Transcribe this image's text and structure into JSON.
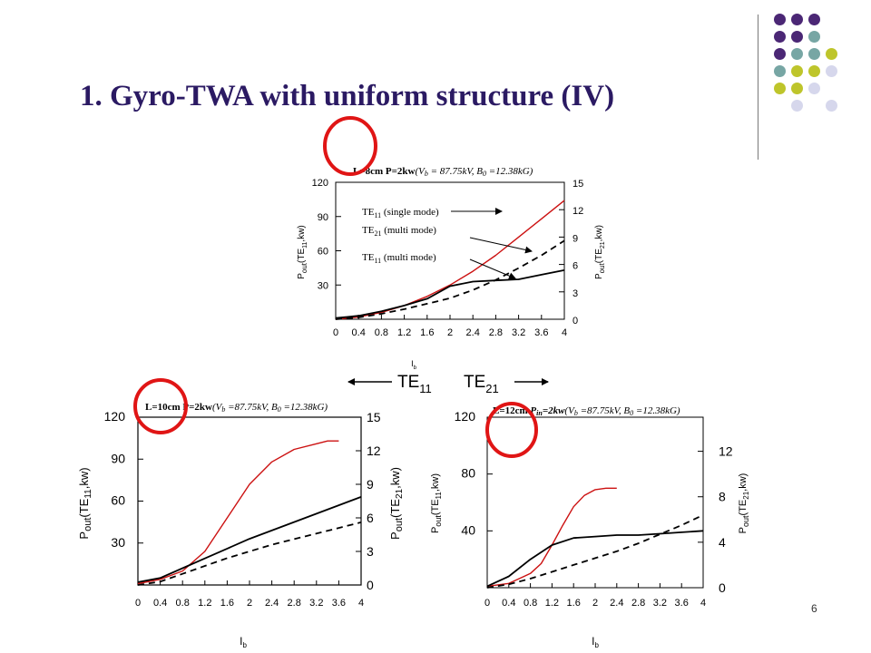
{
  "slide": {
    "title": "1. Gyro-TWA with uniform structure (IV)",
    "page_number": "6",
    "decoration": {
      "dot_colors": {
        "purple": "#4b2775",
        "teal": "#77a6a4",
        "olive": "#bec52b",
        "lavender": "#d6d7ec"
      },
      "dot_grid": [
        [
          "purple",
          "purple",
          "purple",
          null
        ],
        [
          "purple",
          "purple",
          "teal",
          null
        ],
        [
          "purple",
          "teal",
          "teal",
          "olive"
        ],
        [
          "teal",
          "olive",
          "olive",
          "lavender"
        ],
        [
          "olive",
          "olive",
          "lavender",
          null
        ],
        [
          null,
          "lavender",
          null,
          "lavender"
        ]
      ]
    }
  },
  "colors": {
    "single_mode": "#cc1111",
    "multi_mode": "#000000",
    "highlight": "#e01515"
  },
  "mode_arrow": {
    "left": "TE",
    "left_sub": "11",
    "right": "TE",
    "right_sub": "21"
  },
  "chart_data": [
    {
      "type": "line",
      "title": "L=8cm P=2kw(V_b=87.75kV, B_0=12.38kG)",
      "caption": {
        "length": "L=8cm",
        "power": "P=2kw",
        "params": "(V = 87.75kV, B =12.38kG)",
        "sub_vb": "b",
        "sub_b0": "0"
      },
      "xlabel": "I",
      "xlabel_sub": "b",
      "ylabel_left": "P",
      "ylabel_left_sub": "out",
      "ylabel_left_tail": "(TE",
      "ylabel_left_mode": "11",
      "ylabel_left_end": ",kw)",
      "ylabel_right": "P",
      "ylabel_right_sub": "out",
      "ylabel_right_tail": "(TE",
      "ylabel_right_mode": "21",
      "ylabel_right_end": ",kw)",
      "xlim": [
        0,
        4
      ],
      "ylim_left": [
        0,
        120
      ],
      "ylim_right": [
        0,
        15
      ],
      "x_ticks": [
        "0",
        "0.4",
        "0.8",
        "1.2",
        "1.6",
        "2",
        "2.4",
        "2.8",
        "3.2",
        "3.6",
        "4"
      ],
      "y_ticks_left": [
        "30",
        "60",
        "90",
        "120"
      ],
      "y_ticks_right": [
        "0",
        "3",
        "6",
        "9",
        "12",
        "15"
      ],
      "annotations": [
        {
          "text": "TE",
          "sub": "11",
          "tail": " (single mode)"
        },
        {
          "text": "TE",
          "sub": "21",
          "tail": " (multi mode)"
        },
        {
          "text": "TE",
          "sub": "11",
          "tail": " (multi mode)"
        }
      ],
      "series": [
        {
          "name": "TE11 (single mode)",
          "axis": "left",
          "style": "solid",
          "color": "#cc1111",
          "x": [
            0,
            0.4,
            0.8,
            1.2,
            1.6,
            2.0,
            2.4,
            2.8,
            3.2,
            3.6,
            4.0
          ],
          "y": [
            0,
            2,
            6,
            12,
            20,
            30,
            42,
            56,
            72,
            88,
            104
          ]
        },
        {
          "name": "TE11 (multi mode)",
          "axis": "left",
          "style": "solid",
          "color": "#000000",
          "x": [
            0,
            0.4,
            0.8,
            1.2,
            1.6,
            2.0,
            2.4,
            2.8,
            3.2,
            3.6,
            4.0
          ],
          "y": [
            1,
            3,
            7,
            12,
            18,
            29,
            33,
            34,
            35,
            39,
            43
          ]
        },
        {
          "name": "TE21 (multi mode)",
          "axis": "right",
          "style": "dashed",
          "color": "#000000",
          "x": [
            0,
            0.4,
            0.8,
            1.2,
            1.6,
            2.0,
            2.4,
            2.8,
            3.2,
            3.6,
            4.0
          ],
          "y": [
            0,
            0.2,
            0.6,
            1.1,
            1.7,
            2.3,
            3.2,
            4.3,
            5.6,
            7.0,
            8.6
          ]
        }
      ]
    },
    {
      "type": "line",
      "title": "L=10cm P=2kw(V_b=87.75kV, B_0=12.38kG)",
      "caption": {
        "length": "L=10cm",
        "power": "P=2kw",
        "params": "(V =87.75kV, B =12.38kG)",
        "sub_vb": "b",
        "sub_b0": "0"
      },
      "xlabel": "I",
      "xlabel_sub": "b",
      "ylabel_left": "P",
      "ylabel_left_sub": "out",
      "ylabel_left_tail": "(TE",
      "ylabel_left_mode": "11",
      "ylabel_left_end": ",kw)",
      "ylabel_right": "P",
      "ylabel_right_sub": "out",
      "ylabel_right_tail": "(TE",
      "ylabel_right_mode": "21",
      "ylabel_right_end": ",kw)",
      "xlim": [
        0,
        4
      ],
      "ylim_left": [
        0,
        120
      ],
      "ylim_right": [
        0,
        15
      ],
      "x_ticks": [
        "0",
        "0.4",
        "0.8",
        "1.2",
        "1.6",
        "2",
        "2.4",
        "2.8",
        "3.2",
        "3.6",
        "4"
      ],
      "y_ticks_left": [
        "30",
        "60",
        "90",
        "120"
      ],
      "y_ticks_right": [
        "0",
        "3",
        "6",
        "9",
        "12",
        "15"
      ],
      "series": [
        {
          "name": "TE11 (single mode)",
          "axis": "left",
          "style": "solid",
          "color": "#cc1111",
          "x": [
            0,
            0.4,
            0.8,
            1.2,
            1.6,
            2.0,
            2.4,
            2.8,
            3.2,
            3.4,
            3.6
          ],
          "y": [
            1,
            4,
            10,
            24,
            48,
            72,
            88,
            97,
            101,
            103,
            103
          ]
        },
        {
          "name": "TE11 (multi mode)",
          "axis": "left",
          "style": "solid",
          "color": "#000000",
          "x": [
            0,
            0.4,
            0.8,
            1.2,
            1.6,
            2.0,
            2.4,
            2.8,
            3.2,
            3.6,
            4.0
          ],
          "y": [
            2,
            5,
            12,
            19,
            26,
            33,
            39,
            45,
            51,
            57,
            63
          ]
        },
        {
          "name": "TE21 (multi mode)",
          "axis": "right",
          "style": "dashed",
          "color": "#000000",
          "x": [
            0,
            0.4,
            0.8,
            1.2,
            1.6,
            2.0,
            2.4,
            2.8,
            3.2,
            3.6,
            4.0
          ],
          "y": [
            0,
            0.3,
            1.0,
            1.7,
            2.4,
            3.0,
            3.6,
            4.1,
            4.6,
            5.1,
            5.6
          ]
        }
      ]
    },
    {
      "type": "line",
      "title": "L=12cm P_in=2kw(V_b=87.75kV, B_0=12.38kG)",
      "caption": {
        "length": "L=12cm",
        "power": "P",
        "power_sub": "in",
        "power_tail": "=2kw",
        "params": "(V =87.75kV, B =12.38kG)",
        "sub_vb": "b",
        "sub_b0": "0"
      },
      "xlabel": "I",
      "xlabel_sub": "b",
      "ylabel_left": "P",
      "ylabel_left_sub": "out",
      "ylabel_left_tail": "(TE",
      "ylabel_left_mode": "11",
      "ylabel_left_end": ",kw)",
      "ylabel_right": "P",
      "ylabel_right_sub": "out",
      "ylabel_right_tail": "(TE",
      "ylabel_right_mode": "21",
      "ylabel_right_end": ",kw)",
      "xlim": [
        0,
        4
      ],
      "ylim_left": [
        0,
        120
      ],
      "ylim_right": [
        0,
        15
      ],
      "x_ticks": [
        "0",
        "0.4",
        "0.8",
        "1.2",
        "1.6",
        "2",
        "2.4",
        "2.8",
        "3.2",
        "3.6",
        "4"
      ],
      "y_ticks_left": [
        "40",
        "80",
        "120"
      ],
      "y_ticks_right": [
        "0",
        "4",
        "8",
        "12"
      ],
      "series": [
        {
          "name": "TE11 (single mode)",
          "axis": "left",
          "style": "solid",
          "color": "#cc1111",
          "x": [
            0,
            0.4,
            0.8,
            1.0,
            1.2,
            1.4,
            1.6,
            1.8,
            2.0,
            2.2,
            2.4
          ],
          "y": [
            1,
            3,
            10,
            17,
            30,
            44,
            57,
            65,
            69,
            70,
            70
          ]
        },
        {
          "name": "TE11 (multi mode)",
          "axis": "left",
          "style": "solid",
          "color": "#000000",
          "x": [
            0,
            0.4,
            0.8,
            1.2,
            1.6,
            2.0,
            2.4,
            2.8,
            3.2,
            3.6,
            4.0
          ],
          "y": [
            1,
            8,
            20,
            30,
            35,
            36,
            37,
            37,
            38,
            39,
            40
          ]
        },
        {
          "name": "TE21 (multi mode)",
          "axis": "right",
          "style": "dashed",
          "color": "#000000",
          "x": [
            0,
            0.4,
            0.8,
            1.2,
            1.6,
            2.0,
            2.4,
            2.8,
            3.2,
            3.6,
            4.0
          ],
          "y": [
            0,
            0.3,
            0.8,
            1.4,
            2.0,
            2.6,
            3.2,
            3.9,
            4.7,
            5.5,
            6.4
          ]
        }
      ]
    }
  ]
}
